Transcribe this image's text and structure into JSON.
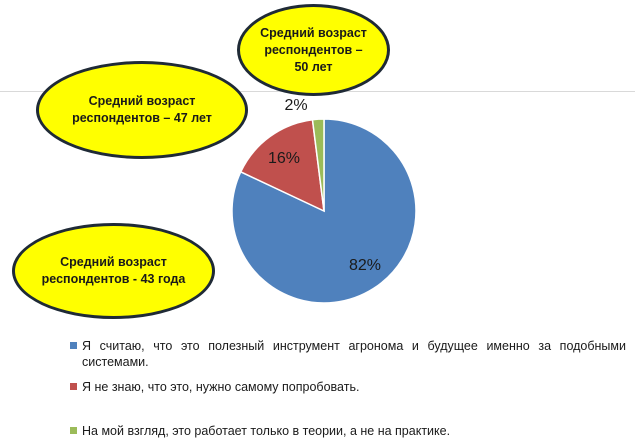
{
  "chart_data": {
    "type": "pie",
    "categories": [
      "Я считаю, что это полезный инструмент агронома и будущее именно за подобными системами.",
      "Я не знаю, что это, нужно самому попробовать.",
      "На мой взгляд, это работает только в теории, а не на практике."
    ],
    "values": [
      82,
      16,
      2
    ],
    "data_labels": [
      "82%",
      "16%",
      "2%"
    ],
    "colors": [
      "#4f81bd",
      "#c0504d",
      "#9bbb59"
    ],
    "legend_position": "bottom",
    "annotations": [
      "Средний возраст респондентов – 50 лет",
      "Средний возраст респондентов – 47 лет",
      "Средний возраст респондентов - 43 года"
    ]
  }
}
